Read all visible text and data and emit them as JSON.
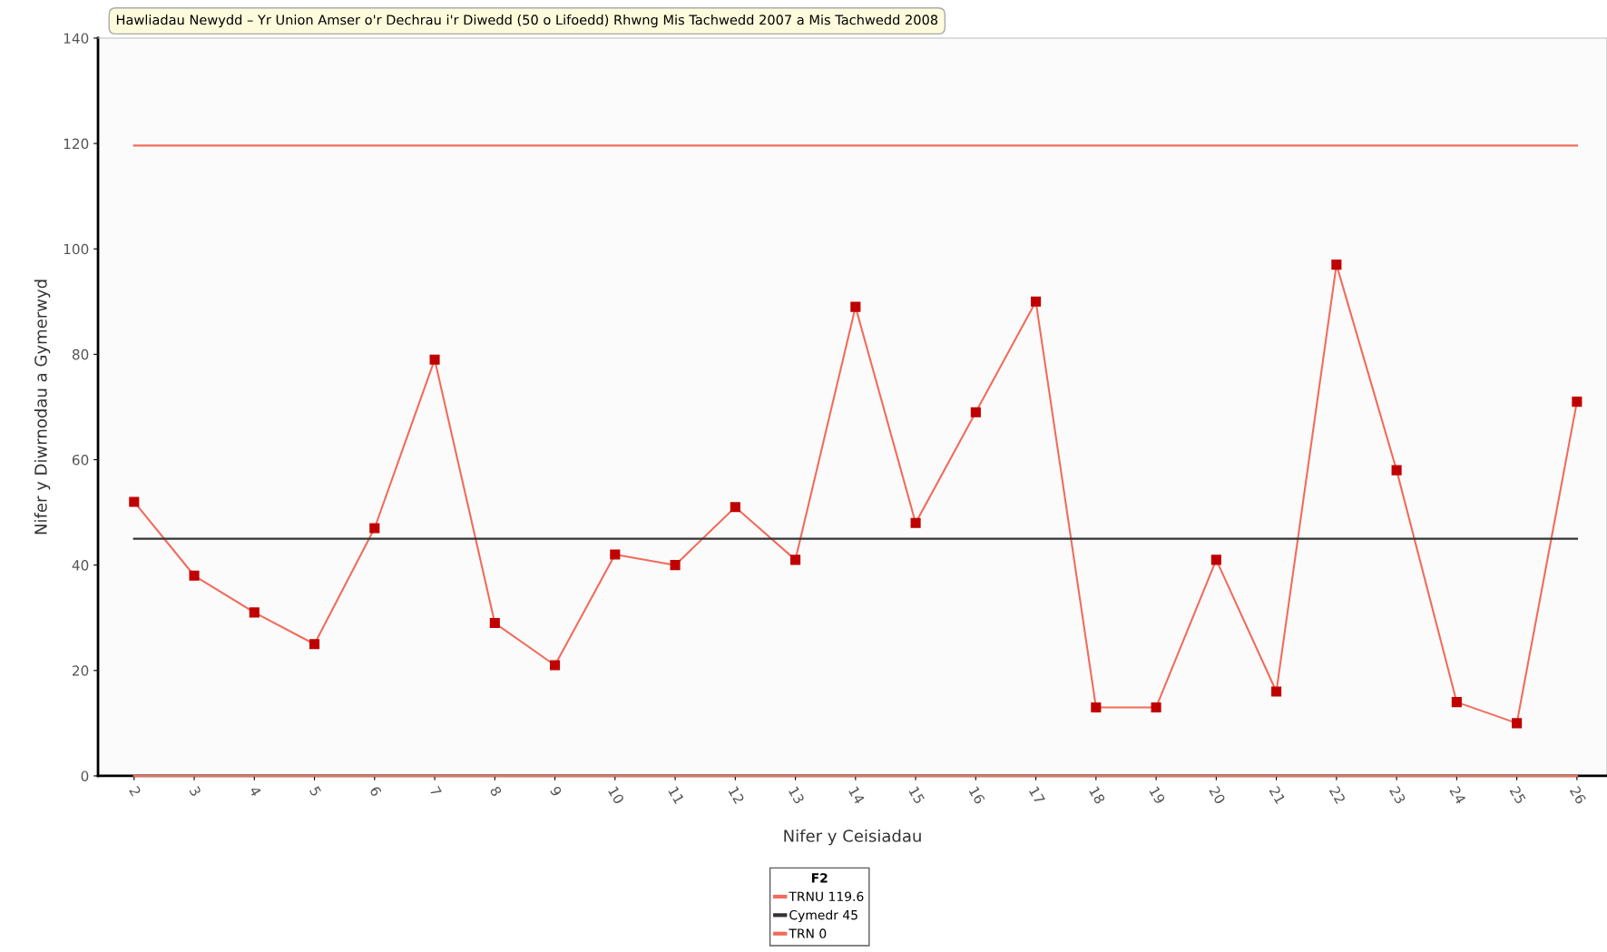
{
  "chart_data": {
    "type": "line",
    "title": "Hawliadau Newydd – Yr Union Amser o'r Dechrau i'r Diwedd (50 o Lifoedd) Rhwng Mis Tachwedd 2007 a Mis Tachwedd 2008",
    "xlabel": "Nifer y Ceisiadau",
    "ylabel": "Nifer y Diwrnodau a Gymerwyd",
    "legend_title": "F2",
    "categories": [
      "2",
      "3",
      "4",
      "5",
      "6",
      "7",
      "8",
      "9",
      "10",
      "11",
      "12",
      "13",
      "14",
      "15",
      "16",
      "17",
      "18",
      "19",
      "20",
      "21",
      "22",
      "23",
      "24",
      "25",
      "26"
    ],
    "series": [
      {
        "color": "#f26b5b",
        "values": [
          52,
          38,
          31,
          25,
          47,
          79,
          29,
          21,
          42,
          40,
          51,
          41,
          89,
          48,
          69,
          90,
          13,
          13,
          41,
          16,
          97,
          58,
          14,
          10,
          71
        ]
      }
    ],
    "marker": "square",
    "line_style": "solid",
    "ylim": [
      0,
      140
    ],
    "yticks": [
      0,
      20,
      40,
      60,
      80,
      100,
      120,
      140
    ],
    "ref_lines": [
      {
        "axis": "y",
        "value": 119.6,
        "label": "TRNU 119.6",
        "color": "#f26b5b"
      },
      {
        "axis": "y",
        "value": 45,
        "label": "Cymedr 45",
        "color": "#333333"
      },
      {
        "axis": "y",
        "value": 0,
        "label": "TRN 0",
        "color": "#f26b5b"
      }
    ],
    "legend": "bottom",
    "grid": false
  }
}
